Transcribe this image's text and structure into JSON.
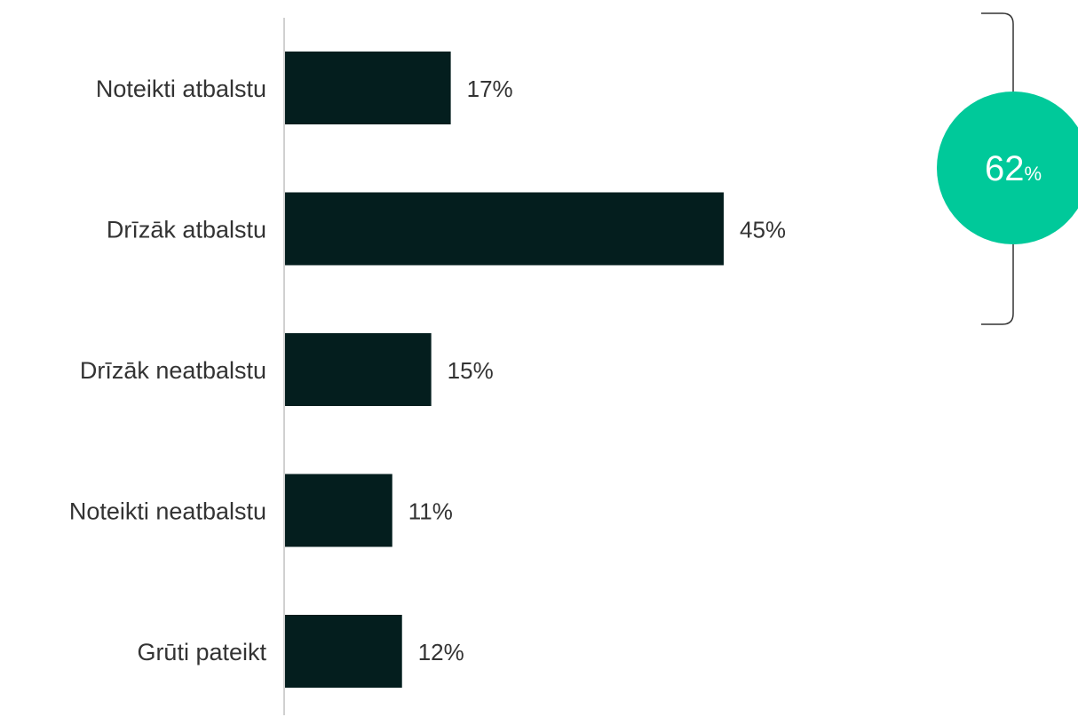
{
  "chart_data": {
    "type": "bar",
    "orientation": "horizontal",
    "categories": [
      "Noteikti atbalstu",
      "Drīzāk atbalstu",
      "Drīzāk neatbalstu",
      "Noteikti neatbalstu",
      "Grūti pateikt"
    ],
    "values": [
      17,
      45,
      15,
      11,
      12
    ],
    "value_labels": [
      "17%",
      "45%",
      "15%",
      "11%",
      "12%"
    ],
    "xlim": [
      0,
      100
    ],
    "grid": false,
    "bar_color": "#041e1e",
    "callout": {
      "value": "62",
      "unit": "%",
      "color": "#00c99a",
      "covers_categories": [
        "Noteikti atbalstu",
        "Drīzāk atbalstu"
      ]
    }
  }
}
